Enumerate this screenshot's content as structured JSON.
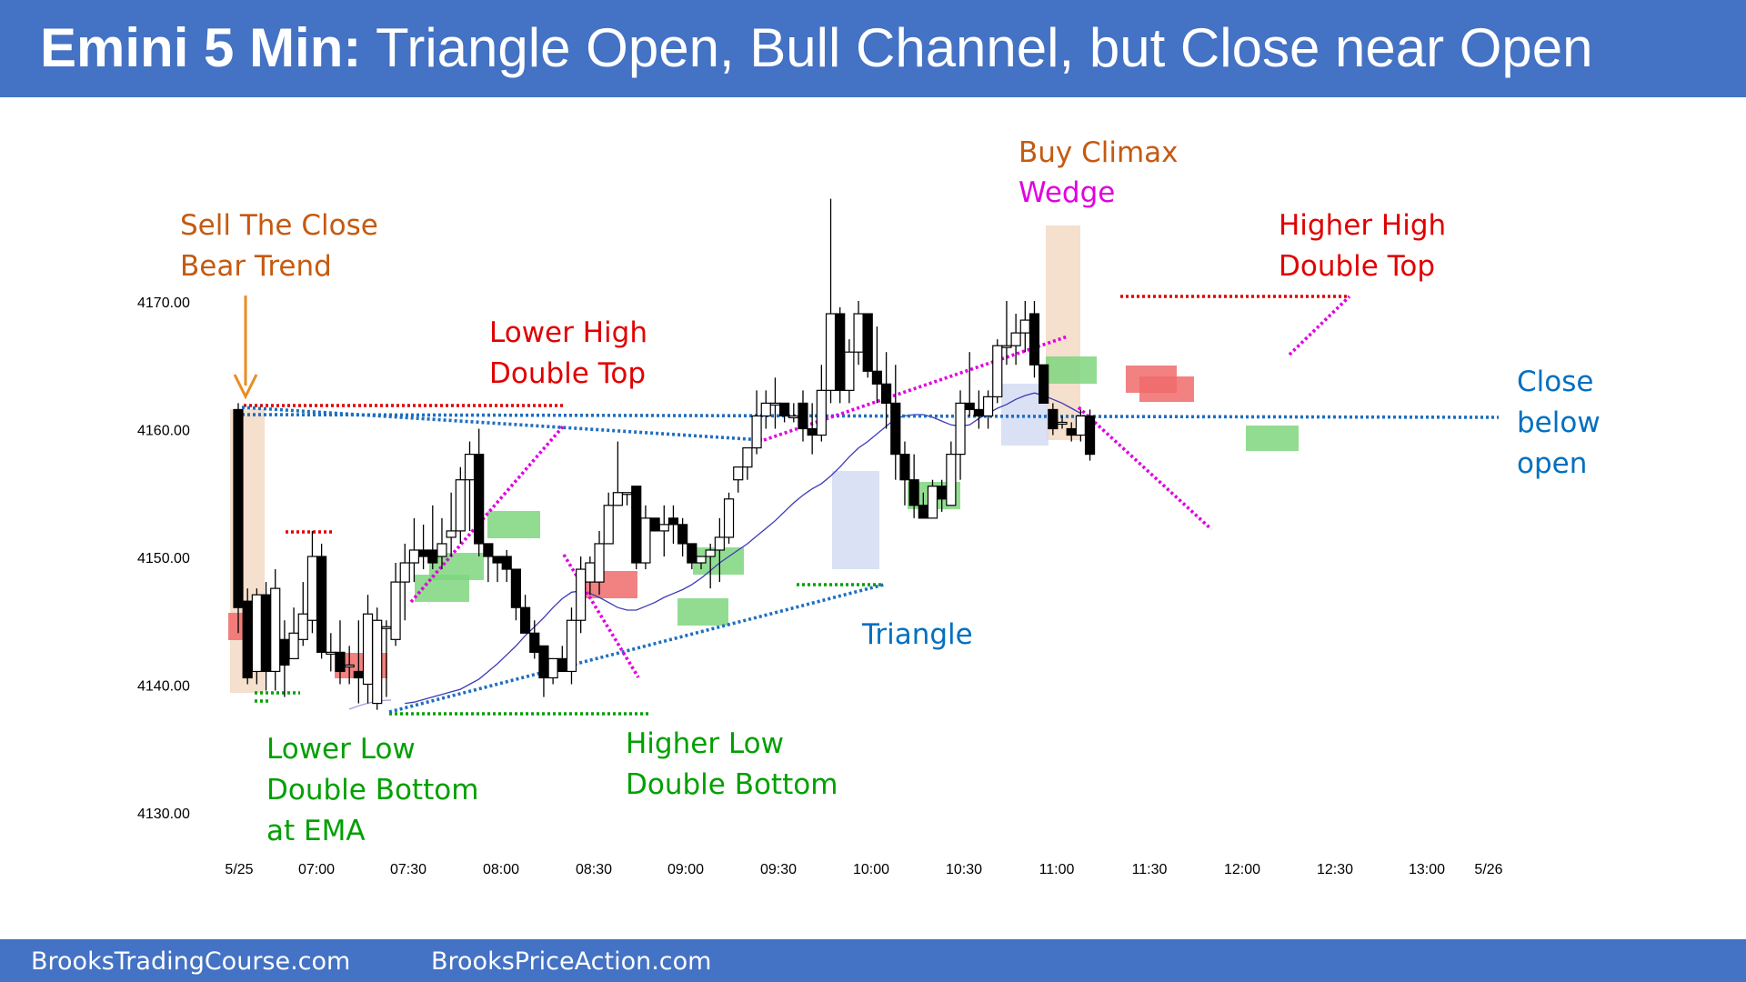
{
  "header": {
    "title_bold": "Emini 5 Min:",
    "title_rest": " Triangle Open, Bull Channel, but Close near Open",
    "background": "#4472c4"
  },
  "footer": {
    "left_text": "BrooksTradingCourse.com",
    "right_text": "BrooksPriceAction.com"
  },
  "chart_data": {
    "type": "candlestick",
    "title": "Emini 5 Min: Triangle Open, Bull Channel, but Close near Open",
    "y_ticks": [
      "4170.00",
      "4160.00",
      "4150.00",
      "4140.00",
      "4130.00"
    ],
    "ylim": [
      4126,
      4183
    ],
    "x_ticks": [
      "5/25",
      "07:00",
      "07:30",
      "08:00",
      "08:30",
      "09:00",
      "09:30",
      "10:00",
      "10:30",
      "11:00",
      "11:30",
      "12:00",
      "12:30",
      "13:00",
      "5/26"
    ],
    "bars": [
      {
        "o": 4161.5,
        "h": 4162,
        "l": 4144,
        "c": 4146
      },
      {
        "o": 4146.5,
        "h": 4147.5,
        "l": 4140,
        "c": 4140.5
      },
      {
        "o": 4141,
        "h": 4147.5,
        "l": 4140,
        "c": 4147
      },
      {
        "o": 4147,
        "h": 4148,
        "l": 4139.5,
        "c": 4141
      },
      {
        "o": 4141,
        "h": 4149,
        "l": 4139.5,
        "c": 4147.5
      },
      {
        "o": 4143.5,
        "h": 4145,
        "l": 4139,
        "c": 4141.5
      },
      {
        "o": 4142,
        "h": 4146,
        "l": 4142,
        "c": 4144
      },
      {
        "o": 4143.5,
        "h": 4148,
        "l": 4143,
        "c": 4145.5
      },
      {
        "o": 4145,
        "h": 4152,
        "l": 4144,
        "c": 4150
      },
      {
        "o": 4150,
        "h": 4151,
        "l": 4142,
        "c": 4142.5
      },
      {
        "o": 4142.5,
        "h": 4144,
        "l": 4141,
        "c": 4142.5
      },
      {
        "o": 4142.5,
        "h": 4145,
        "l": 4140,
        "c": 4141
      },
      {
        "o": 4141.5,
        "h": 4143,
        "l": 4140,
        "c": 4141.5
      },
      {
        "o": 4141,
        "h": 4145,
        "l": 4138.5,
        "c": 4140.5
      },
      {
        "o": 4140,
        "h": 4147,
        "l": 4138.5,
        "c": 4145.5
      },
      {
        "o": 4138.5,
        "h": 4146,
        "l": 4138,
        "c": 4145
      },
      {
        "o": 4144.5,
        "h": 4145,
        "l": 4139,
        "c": 4144.5
      },
      {
        "o": 4143.5,
        "h": 4149.5,
        "l": 4143,
        "c": 4148
      },
      {
        "o": 4148,
        "h": 4151,
        "l": 4145,
        "c": 4149.5
      },
      {
        "o": 4149.5,
        "h": 4153,
        "l": 4148,
        "c": 4150.5
      },
      {
        "o": 4150.5,
        "h": 4152.5,
        "l": 4149,
        "c": 4150
      },
      {
        "o": 4150.5,
        "h": 4154,
        "l": 4149,
        "c": 4149.5
      },
      {
        "o": 4150,
        "h": 4153,
        "l": 4149,
        "c": 4151
      },
      {
        "o": 4151.5,
        "h": 4155,
        "l": 4150,
        "c": 4152
      },
      {
        "o": 4152,
        "h": 4157,
        "l": 4151,
        "c": 4156
      },
      {
        "o": 4156,
        "h": 4159,
        "l": 4152,
        "c": 4158
      },
      {
        "o": 4158,
        "h": 4160,
        "l": 4150,
        "c": 4151
      },
      {
        "o": 4151,
        "h": 4151,
        "l": 4148,
        "c": 4150
      },
      {
        "o": 4150,
        "h": 4150,
        "l": 4148,
        "c": 4149.5
      },
      {
        "o": 4150,
        "h": 4150.5,
        "l": 4148,
        "c": 4149
      },
      {
        "o": 4149,
        "h": 4149,
        "l": 4145,
        "c": 4146
      },
      {
        "o": 4146,
        "h": 4147,
        "l": 4144,
        "c": 4144
      },
      {
        "o": 4144,
        "h": 4145,
        "l": 4142,
        "c": 4142.5
      },
      {
        "o": 4143,
        "h": 4143,
        "l": 4139,
        "c": 4140.5
      },
      {
        "o": 4140.5,
        "h": 4142,
        "l": 4140,
        "c": 4142
      },
      {
        "o": 4142,
        "h": 4143,
        "l": 4141,
        "c": 4141
      },
      {
        "o": 4141,
        "h": 4146,
        "l": 4140,
        "c": 4145
      },
      {
        "o": 4145,
        "h": 4150,
        "l": 4144,
        "c": 4149
      },
      {
        "o": 4148,
        "h": 4150,
        "l": 4147,
        "c": 4149.5
      },
      {
        "o": 4148,
        "h": 4152,
        "l": 4147,
        "c": 4151
      },
      {
        "o": 4151,
        "h": 4155,
        "l": 4151,
        "c": 4154
      },
      {
        "o": 4154,
        "h": 4159,
        "l": 4154,
        "c": 4155
      },
      {
        "o": 4155,
        "h": 4155,
        "l": 4154,
        "c": 4155
      },
      {
        "o": 4155.5,
        "h": 4155.5,
        "l": 4149,
        "c": 4149.5
      },
      {
        "o": 4149.5,
        "h": 4154,
        "l": 4149,
        "c": 4153
      },
      {
        "o": 4153,
        "h": 4153,
        "l": 4152,
        "c": 4152
      },
      {
        "o": 4152,
        "h": 4154,
        "l": 4150,
        "c": 4152.5
      },
      {
        "o": 4153,
        "h": 4154,
        "l": 4151,
        "c": 4152.5
      },
      {
        "o": 4152.5,
        "h": 4153,
        "l": 4150,
        "c": 4151
      },
      {
        "o": 4151,
        "h": 4151,
        "l": 4149,
        "c": 4149.5
      },
      {
        "o": 4149.5,
        "h": 4150,
        "l": 4149,
        "c": 4150
      },
      {
        "o": 4150,
        "h": 4151,
        "l": 4147.5,
        "c": 4150.5
      },
      {
        "o": 4150.5,
        "h": 4153,
        "l": 4148,
        "c": 4151.5
      },
      {
        "o": 4151.5,
        "h": 4155,
        "l": 4151,
        "c": 4154.5
      },
      {
        "o": 4156,
        "h": 4157,
        "l": 4155,
        "c": 4157
      },
      {
        "o": 4157,
        "h": 4158.5,
        "l": 4156,
        "c": 4158.5
      },
      {
        "o": 4158.5,
        "h": 4163,
        "l": 4158,
        "c": 4161
      },
      {
        "o": 4161,
        "h": 4163,
        "l": 4160,
        "c": 4162
      },
      {
        "o": 4162,
        "h": 4164,
        "l": 4160,
        "c": 4162
      },
      {
        "o": 4162,
        "h": 4162,
        "l": 4160.5,
        "c": 4161
      },
      {
        "o": 4161,
        "h": 4162,
        "l": 4160.5,
        "c": 4161
      },
      {
        "o": 4162,
        "h": 4163,
        "l": 4159,
        "c": 4160
      },
      {
        "o": 4160,
        "h": 4162,
        "l": 4158,
        "c": 4159.5
      },
      {
        "o": 4159.5,
        "h": 4165,
        "l": 4159,
        "c": 4163
      },
      {
        "o": 4163,
        "h": 4178,
        "l": 4162,
        "c": 4169
      },
      {
        "o": 4169,
        "h": 4169.5,
        "l": 4162,
        "c": 4163
      },
      {
        "o": 4163,
        "h": 4167,
        "l": 4162,
        "c": 4166
      },
      {
        "o": 4166,
        "h": 4170,
        "l": 4165,
        "c": 4169
      },
      {
        "o": 4169,
        "h": 4169,
        "l": 4164,
        "c": 4164.5
      },
      {
        "o": 4164.5,
        "h": 4168,
        "l": 4162,
        "c": 4163.5
      },
      {
        "o": 4163.5,
        "h": 4166,
        "l": 4160,
        "c": 4162
      },
      {
        "o": 4162,
        "h": 4165,
        "l": 4156,
        "c": 4158
      },
      {
        "o": 4158,
        "h": 4159,
        "l": 4154,
        "c": 4156
      },
      {
        "o": 4156,
        "h": 4158,
        "l": 4153,
        "c": 4154
      },
      {
        "o": 4154,
        "h": 4155,
        "l": 4153,
        "c": 4153
      },
      {
        "o": 4153,
        "h": 4156,
        "l": 4153,
        "c": 4155.5
      },
      {
        "o": 4155.5,
        "h": 4156,
        "l": 4153.5,
        "c": 4154.5
      },
      {
        "o": 4154,
        "h": 4159,
        "l": 4154,
        "c": 4158
      },
      {
        "o": 4158,
        "h": 4163,
        "l": 4156,
        "c": 4162
      },
      {
        "o": 4162,
        "h": 4166,
        "l": 4161,
        "c": 4161.5
      },
      {
        "o": 4161.5,
        "h": 4163,
        "l": 4160,
        "c": 4161
      },
      {
        "o": 4161,
        "h": 4163,
        "l": 4160,
        "c": 4162.5
      },
      {
        "o": 4162.5,
        "h": 4167,
        "l": 4162,
        "c": 4166.5
      },
      {
        "o": 4166.5,
        "h": 4170,
        "l": 4165,
        "c": 4166.5
      },
      {
        "o": 4166.5,
        "h": 4169,
        "l": 4165,
        "c": 4167.5
      },
      {
        "o": 4167.5,
        "h": 4170,
        "l": 4166,
        "c": 4168.5
      },
      {
        "o": 4169,
        "h": 4170,
        "l": 4164,
        "c": 4165
      },
      {
        "o": 4165,
        "h": 4165,
        "l": 4162,
        "c": 4162
      },
      {
        "o": 4161.5,
        "h": 4162,
        "l": 4159.5,
        "c": 4160
      },
      {
        "o": 4160.5,
        "h": 4161,
        "l": 4160,
        "c": 4160.5
      },
      {
        "o": 4160,
        "h": 4160.5,
        "l": 4159,
        "c": 4159.5
      },
      {
        "o": 4159.5,
        "h": 4161.5,
        "l": 4159,
        "c": 4161
      },
      {
        "o": 4161,
        "h": 4161.5,
        "l": 4157.5,
        "c": 4158
      }
    ],
    "ema": [
      [
        4138.5,
        4138.6,
        4138.8,
        4139,
        4139.2,
        4139.4,
        4139.6,
        4140,
        4140.4,
        4141,
        4141.6,
        4142.3,
        4143,
        4143.8,
        4144.5,
        4145.2,
        4146,
        4146.7,
        4147.2,
        4147.3,
        4147.1,
        4146.8,
        4146.4,
        4146,
        4145.8,
        4145.8,
        4146.1,
        4146.4,
        4146.8,
        4147.1,
        4147.4,
        4147.8,
        4148.3,
        4148.9,
        4149.5,
        4150,
        4150.5,
        4151,
        4151.6,
        4152.2,
        4152.8,
        4153.5,
        4154.2,
        4154.8,
        4155.3,
        4155.7,
        4156.3,
        4157,
        4157.8,
        4158.5,
        4159,
        4159.6,
        4160.2,
        4160.8,
        4161,
        4161.1,
        4161.1,
        4160.9,
        4160.6,
        4160.3,
        4160.2,
        4160.3,
        4160.8,
        4161.2,
        4161.6,
        4161.9,
        4162.3,
        4162.6,
        4162.8,
        4162.6,
        4162.3,
        4162,
        4161.6,
        4161.2
      ]
    ],
    "annotations": [
      {
        "lines": [
          "Sell The Close",
          "Bear Trend"
        ],
        "color": "#c55a11"
      },
      {
        "lines": [
          "Lower High",
          "Double Top"
        ],
        "color": "#e00000"
      },
      {
        "lines": [
          "Buy Climax"
        ],
        "color": "#c55a11"
      },
      {
        "lines": [
          "Wedge"
        ],
        "color": "#e000e0"
      },
      {
        "lines": [
          "Higher High",
          "Double Top"
        ],
        "color": "#e00000"
      },
      {
        "lines": [
          "Close",
          "below",
          "open"
        ],
        "color": "#0070c0"
      },
      {
        "lines": [
          "Triangle"
        ],
        "color": "#0070c0"
      },
      {
        "lines": [
          "Lower Low",
          "Double Bottom",
          "at EMA"
        ],
        "color": "#00a000"
      },
      {
        "lines": [
          "Higher Low",
          "Double Bottom"
        ],
        "color": "#00a000"
      }
    ],
    "grid": false,
    "colors": {
      "bull_body": "#ffffff",
      "bear_body": "#000000",
      "ema": "#3b3bb5",
      "green_box": "#7fd67f",
      "red_box": "#f06b6b",
      "tan_box": "#f3d9c4",
      "lavender_box": "#d5dcf3",
      "blue_dotted": "#1f6fbf",
      "red_dotted": "#e00000",
      "green_dotted": "#00a000",
      "magenta_dotted": "#e000e0",
      "arrow": "#ed8b1f"
    }
  }
}
